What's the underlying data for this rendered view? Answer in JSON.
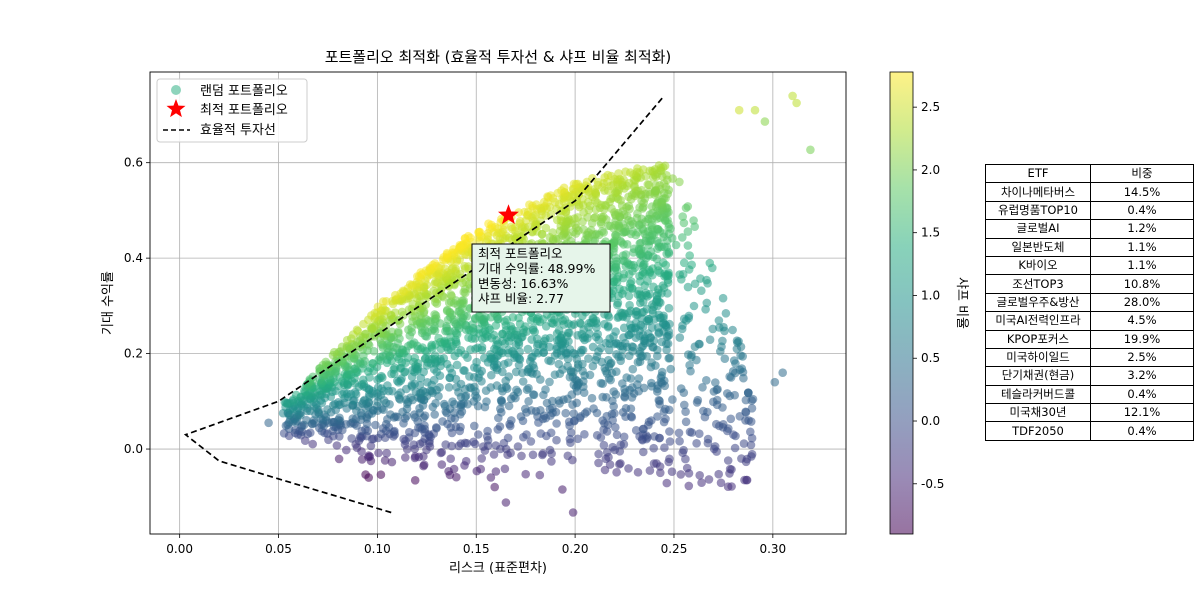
{
  "chart_data": {
    "type": "scatter",
    "title": "포트폴리오 최적화 (효율적 투자선 & 샤프 비율 최적화)",
    "xlabel": "리스크 (표준편차)",
    "ylabel": "기대 수익률",
    "xlim": [
      -0.015,
      0.337
    ],
    "ylim": [
      -0.178,
      0.79
    ],
    "xticks": [
      "0.00",
      "0.05",
      "0.10",
      "0.15",
      "0.20",
      "0.25",
      "0.30"
    ],
    "yticks": [
      "0.0",
      "0.2",
      "0.4",
      "0.6"
    ],
    "xtick_values": [
      0,
      0.05,
      0.1,
      0.15,
      0.2,
      0.25,
      0.3
    ],
    "ytick_values": [
      0,
      0.2,
      0.4,
      0.6
    ],
    "grid": true,
    "legend_position": "top-left",
    "series": [
      {
        "name": "랜덤 포트폴리오",
        "marker": "circle",
        "colormap": "viridis",
        "color_by": "sharpe",
        "approx_region": {
          "lower_left": [
            0.045,
            0.05
          ],
          "top_edge": [
            [
              0.055,
              0.1
            ],
            [
              0.1,
              0.3
            ],
            [
              0.15,
              0.46
            ],
            [
              0.2,
              0.56
            ],
            [
              0.245,
              0.6
            ]
          ],
          "right_edge_x": 0.248,
          "bottom_y": -0.08
        },
        "outliers": [
          {
            "x": 0.045,
            "y": 0.055,
            "sharpe": 0.3
          },
          {
            "x": 0.305,
            "y": 0.16,
            "sharpe": 0.4
          },
          {
            "x": 0.301,
            "y": 0.14,
            "sharpe": 0.35
          },
          {
            "x": 0.319,
            "y": 0.627,
            "sharpe": 2.0
          },
          {
            "x": 0.31,
            "y": 0.74,
            "sharpe": 2.4
          },
          {
            "x": 0.283,
            "y": 0.71,
            "sharpe": 2.5
          },
          {
            "x": 0.312,
            "y": 0.725,
            "sharpe": 2.4
          },
          {
            "x": 0.291,
            "y": 0.71,
            "sharpe": 2.4
          },
          {
            "x": 0.165,
            "y": -0.112,
            "sharpe": -0.6
          },
          {
            "x": 0.199,
            "y": -0.133,
            "sharpe": -0.6
          },
          {
            "x": 0.287,
            "y": -0.065,
            "sharpe": -0.4
          },
          {
            "x": 0.296,
            "y": 0.686,
            "sharpe": 2.1
          }
        ]
      },
      {
        "name": "최적 포트폴리오",
        "marker": "star",
        "color": "#ff0000",
        "points": [
          {
            "x": 0.1663,
            "y": 0.4899
          }
        ]
      },
      {
        "name": "효율적 투자선",
        "style": "dashed",
        "color": "#000000",
        "points": [
          [
            0.107,
            -0.133
          ],
          [
            0.06,
            -0.075
          ],
          [
            0.02,
            -0.025
          ],
          [
            0.003,
            0.03
          ],
          [
            0.05,
            0.1
          ],
          [
            0.1,
            0.24
          ],
          [
            0.15,
            0.38
          ],
          [
            0.2,
            0.52
          ],
          [
            0.245,
            0.74
          ]
        ]
      }
    ],
    "colorbar": {
      "label": "샤프 비율",
      "colormap": "viridis",
      "range": [
        -0.9,
        2.78
      ],
      "ticks": [
        "-0.5",
        "0.0",
        "0.5",
        "1.0",
        "1.5",
        "2.0",
        "2.5"
      ],
      "tick_values": [
        -0.5,
        0,
        0.5,
        1.0,
        1.5,
        2.0,
        2.5
      ]
    },
    "annotation": {
      "lines": [
        "최적 포트폴리오",
        "기대 수익률: 48.99%",
        "변동성: 16.63%",
        "샤프 비율: 2.77"
      ],
      "background": "#e6f5ea"
    },
    "table": {
      "header": [
        "ETF",
        "비중"
      ],
      "rows": [
        [
          "차이나메타버스",
          "14.5%"
        ],
        [
          "유럽명품TOP10",
          "0.4%"
        ],
        [
          "글로벌AI",
          "1.2%"
        ],
        [
          "일본반도체",
          "1.1%"
        ],
        [
          "K바이오",
          "1.1%"
        ],
        [
          "조선TOP3",
          "10.8%"
        ],
        [
          "글로벌우주&방산",
          "28.0%"
        ],
        [
          "미국AI전력인프라",
          "4.5%"
        ],
        [
          "KPOP포커스",
          "19.9%"
        ],
        [
          "미국하이일드",
          "2.5%"
        ],
        [
          "단기채권(현금)",
          "3.2%"
        ],
        [
          "테슬라커버드콜",
          "0.4%"
        ],
        [
          "미국채30년",
          "12.1%"
        ],
        [
          "TDF2050",
          "0.4%"
        ]
      ]
    }
  }
}
